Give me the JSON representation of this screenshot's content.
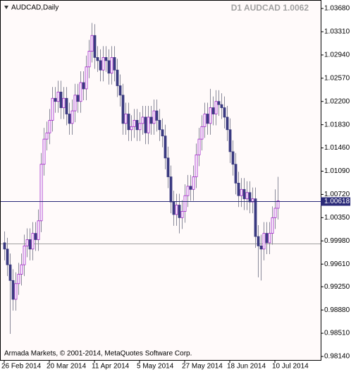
{
  "chart_data": {
    "type": "candlestick",
    "symbol_label": "AUDCAD,Daily",
    "title": "D1 AUDCAD 1.0062",
    "footer": "Armada Markets, © 2001-2014, MetaQuotes Software Corp.",
    "categories": [
      "26 Feb 2014",
      null,
      null,
      null,
      null,
      null,
      null,
      null,
      null,
      null,
      null,
      null,
      null,
      null,
      null,
      null,
      "20 Mar 2014",
      null,
      null,
      null,
      null,
      null,
      null,
      null,
      null,
      null,
      null,
      null,
      null,
      null,
      null,
      null,
      "11 Apr 2014",
      null,
      null,
      null,
      null,
      null,
      null,
      null,
      null,
      null,
      null,
      null,
      null,
      null,
      null,
      null,
      "5 May 2014",
      null,
      null,
      null,
      null,
      null,
      null,
      null,
      null,
      null,
      null,
      null,
      null,
      null,
      null,
      null,
      "27 May 2014",
      null,
      null,
      null,
      null,
      null,
      null,
      null,
      null,
      null,
      null,
      null,
      null,
      null,
      null,
      null,
      "18 Jun 2014",
      null,
      null,
      null,
      null,
      null,
      null,
      null,
      null,
      null,
      null,
      null,
      null,
      null,
      null,
      null,
      "10 Jul 2014",
      null
    ],
    "open": [
      0.9995,
      0.9985,
      0.996,
      0.9935,
      0.9905,
      0.993,
      0.9945,
      0.996,
      0.999,
      1.0,
      0.9985,
      1.001,
      1.0,
      1.003,
      1.012,
      1.016,
      1.017,
      1.019,
      1.0225,
      1.022,
      1.0235,
      1.021,
      1.0225,
      1.02,
      1.0185,
      1.0205,
      1.023,
      1.022,
      1.025,
      1.024,
      1.0275,
      1.03,
      1.0325,
      1.029,
      1.0285,
      1.027,
      1.029,
      1.0285,
      1.0265,
      1.029,
      1.027,
      1.0245,
      1.023,
      1.0185,
      1.02,
      1.0175,
      1.018,
      1.019,
      1.0175,
      1.0185,
      1.0195,
      1.017,
      1.0195,
      1.0185,
      1.0205,
      1.019,
      1.0175,
      1.0165,
      1.013,
      1.01,
      1.006,
      1.004,
      1.0055,
      1.0035,
      1.0045,
      1.007,
      1.0085,
      1.008,
      1.01,
      1.0135,
      1.016,
      1.018,
      1.02,
      1.0185,
      1.021,
      1.02,
      1.022,
      1.0215,
      1.021,
      1.0195,
      1.0175,
      1.014,
      1.012,
      1.009,
      1.007,
      1.008,
      1.0065,
      1.0075,
      1.006,
      1.0065,
      1.0005,
      0.999,
      0.9985,
      1.001,
      0.9995,
      1.001,
      1.0035,
      1.005
    ],
    "high": [
      1.0013,
      1.0003,
      0.9978,
      0.9953,
      0.9948,
      0.9963,
      0.9978,
      1.0008,
      1.0018,
      1.0018,
      1.0028,
      1.0028,
      1.0048,
      1.0138,
      1.0178,
      1.0188,
      1.0208,
      1.0243,
      1.0243,
      1.0253,
      1.0253,
      1.0243,
      1.0243,
      1.0218,
      1.0223,
      1.0248,
      1.0248,
      1.0268,
      1.0268,
      1.0293,
      1.0318,
      1.0345,
      1.0343,
      1.0308,
      1.0303,
      1.0308,
      1.0308,
      1.0303,
      1.0308,
      1.0308,
      1.0288,
      1.0263,
      1.0248,
      1.0218,
      1.0218,
      1.0198,
      1.0208,
      1.0208,
      1.0203,
      1.0213,
      1.0213,
      1.0213,
      1.0213,
      1.0223,
      1.0223,
      1.0208,
      1.0193,
      1.0183,
      1.0148,
      1.0118,
      1.0078,
      1.0073,
      1.0073,
      1.0063,
      1.0088,
      1.0103,
      1.0103,
      1.0118,
      1.0153,
      1.0178,
      1.0198,
      1.0218,
      1.0218,
      1.024,
      1.0228,
      1.0238,
      1.0238,
      1.0233,
      1.0228,
      1.0213,
      1.0193,
      1.0158,
      1.0138,
      1.0108,
      1.0098,
      1.0098,
      1.0093,
      1.0093,
      1.0083,
      1.0083,
      1.0023,
      1.0008,
      1.0028,
      1.0028,
      1.0028,
      1.0053,
      1.008,
      1.01
    ],
    "low": [
      0.9967,
      0.9942,
      0.985,
      0.9887,
      0.9887,
      0.9912,
      0.9927,
      0.9942,
      0.9972,
      0.9967,
      0.9967,
      0.9982,
      0.9982,
      1.0012,
      1.0102,
      1.0142,
      1.0152,
      1.0172,
      1.0202,
      1.0202,
      1.0192,
      1.0192,
      1.0182,
      1.0167,
      1.0167,
      1.0187,
      1.0202,
      1.0202,
      1.0222,
      1.0222,
      1.0257,
      1.0282,
      1.0272,
      1.0267,
      1.0252,
      1.0252,
      1.0267,
      1.0247,
      1.0247,
      1.0252,
      1.0227,
      1.0212,
      1.0167,
      1.0167,
      1.0157,
      1.0157,
      1.0162,
      1.0157,
      1.0157,
      1.0167,
      1.0152,
      1.0152,
      1.0167,
      1.0167,
      1.0172,
      1.0157,
      1.0147,
      1.0112,
      1.0082,
      1.0042,
      1.0022,
      1.0022,
      1.001,
      1.0017,
      1.0027,
      1.0052,
      1.0062,
      1.0062,
      1.0082,
      1.0117,
      1.0142,
      1.0162,
      1.0167,
      1.0167,
      1.0182,
      1.0182,
      1.0197,
      1.0192,
      1.0177,
      1.0157,
      1.0122,
      1.0102,
      1.0072,
      1.0052,
      1.0052,
      1.0047,
      1.0047,
      1.0042,
      1.0042,
      0.9987,
      0.994,
      0.9935,
      0.9967,
      0.9977,
      0.9977,
      0.9992,
      1.0017,
      1.0032
    ],
    "close": [
      0.9985,
      0.996,
      0.9935,
      0.9905,
      0.993,
      0.9945,
      0.996,
      0.999,
      1.0,
      0.9985,
      1.001,
      1.0,
      1.003,
      1.012,
      1.016,
      1.017,
      1.019,
      1.0225,
      1.022,
      1.0235,
      1.021,
      1.0225,
      1.02,
      1.0185,
      1.0205,
      1.023,
      1.022,
      1.025,
      1.024,
      1.0275,
      1.03,
      1.0325,
      1.029,
      1.0285,
      1.027,
      1.029,
      1.0285,
      1.0265,
      1.029,
      1.027,
      1.0245,
      1.023,
      1.0185,
      1.02,
      1.0175,
      1.018,
      1.019,
      1.0175,
      1.0185,
      1.0195,
      1.017,
      1.0195,
      1.0185,
      1.0205,
      1.019,
      1.0175,
      1.0165,
      1.013,
      1.01,
      1.006,
      1.004,
      1.0055,
      1.0035,
      1.0045,
      1.007,
      1.0085,
      1.008,
      1.01,
      1.0135,
      1.016,
      1.018,
      1.02,
      1.0185,
      1.021,
      1.02,
      1.022,
      1.0215,
      1.021,
      1.0195,
      1.0175,
      1.014,
      1.012,
      1.009,
      1.007,
      1.008,
      1.0065,
      1.0075,
      1.006,
      1.0065,
      1.0005,
      0.999,
      0.9985,
      1.001,
      0.9995,
      1.001,
      1.0035,
      1.005,
      1.00618
    ],
    "hline": 0.9994,
    "up_color": "#a020c8",
    "down_color": "#3a3a80",
    "wick_color": "#8a8a9a",
    "price_line_color": "#2a2a78",
    "hline_color": "#a0a0a0",
    "ylim": [
      0.98084,
      1.03815
    ],
    "yticks": [
      {
        "value": 1.0368,
        "label": "1.03680"
      },
      {
        "value": 1.0331,
        "label": "1.03310"
      },
      {
        "value": 1.0294,
        "label": "1.02940"
      },
      {
        "value": 1.0257,
        "label": "1.02570"
      },
      {
        "value": 1.022,
        "label": "1.02200"
      },
      {
        "value": 1.0183,
        "label": "1.01830"
      },
      {
        "value": 1.0146,
        "label": "1.01460"
      },
      {
        "value": 1.0109,
        "label": "1.01090"
      },
      {
        "value": 1.0072,
        "label": "1.00720"
      },
      {
        "value": 1.0035,
        "label": "1.00350"
      },
      {
        "value": 0.9998,
        "label": "0.99980"
      },
      {
        "value": 0.9961,
        "label": "0.99610"
      },
      {
        "value": 0.9925,
        "label": "0.99250"
      },
      {
        "value": 0.9888,
        "label": "0.98880"
      },
      {
        "value": 0.9851,
        "label": "0.98510"
      },
      {
        "value": 0.9814,
        "label": "0.98140"
      }
    ]
  }
}
